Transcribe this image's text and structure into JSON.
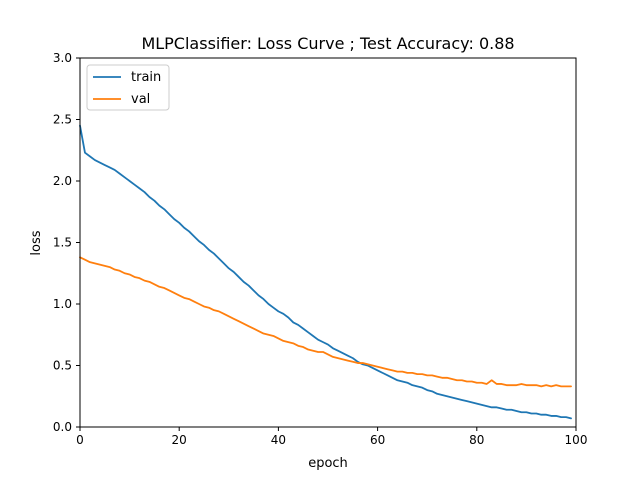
{
  "chart_data": {
    "type": "line",
    "title": "MLPClassifier: Loss Curve ; Test Accuracy: 0.88",
    "xlabel": "epoch",
    "ylabel": "loss",
    "xlim": [
      0,
      100
    ],
    "ylim": [
      0,
      3
    ],
    "xticks": [
      0,
      20,
      40,
      60,
      80,
      100
    ],
    "yticks": [
      0.0,
      0.5,
      1.0,
      1.5,
      2.0,
      2.5,
      3.0
    ],
    "xtick_labels": [
      "0",
      "20",
      "40",
      "60",
      "80",
      "100"
    ],
    "ytick_labels": [
      "0.0",
      "0.5",
      "1.0",
      "1.5",
      "2.0",
      "2.5",
      "3.0"
    ],
    "grid": false,
    "legend_position": "upper-left",
    "series": [
      {
        "name": "train",
        "color": "#1f77b4",
        "x": [
          0,
          1,
          2,
          3,
          4,
          5,
          6,
          7,
          8,
          9,
          10,
          11,
          12,
          13,
          14,
          15,
          16,
          17,
          18,
          19,
          20,
          21,
          22,
          23,
          24,
          25,
          26,
          27,
          28,
          29,
          30,
          31,
          32,
          33,
          34,
          35,
          36,
          37,
          38,
          39,
          40,
          41,
          42,
          43,
          44,
          45,
          46,
          47,
          48,
          49,
          50,
          51,
          52,
          53,
          54,
          55,
          56,
          57,
          58,
          59,
          60,
          61,
          62,
          63,
          64,
          65,
          66,
          67,
          68,
          69,
          70,
          71,
          72,
          73,
          74,
          75,
          76,
          77,
          78,
          79,
          80,
          81,
          82,
          83,
          84,
          85,
          86,
          87,
          88,
          89,
          90,
          91,
          92,
          93,
          94,
          95,
          96,
          97,
          98,
          99
        ],
        "values": [
          2.45,
          2.23,
          2.2,
          2.17,
          2.15,
          2.13,
          2.11,
          2.09,
          2.06,
          2.03,
          2.0,
          1.97,
          1.94,
          1.91,
          1.87,
          1.84,
          1.8,
          1.77,
          1.73,
          1.69,
          1.66,
          1.62,
          1.59,
          1.55,
          1.51,
          1.48,
          1.44,
          1.41,
          1.37,
          1.33,
          1.29,
          1.26,
          1.22,
          1.18,
          1.15,
          1.11,
          1.07,
          1.04,
          1.0,
          0.97,
          0.94,
          0.92,
          0.89,
          0.85,
          0.83,
          0.8,
          0.77,
          0.74,
          0.71,
          0.69,
          0.67,
          0.64,
          0.62,
          0.6,
          0.58,
          0.56,
          0.53,
          0.51,
          0.5,
          0.48,
          0.46,
          0.44,
          0.42,
          0.4,
          0.38,
          0.37,
          0.36,
          0.34,
          0.33,
          0.32,
          0.3,
          0.29,
          0.27,
          0.26,
          0.25,
          0.24,
          0.23,
          0.22,
          0.21,
          0.2,
          0.19,
          0.18,
          0.17,
          0.16,
          0.16,
          0.15,
          0.14,
          0.14,
          0.13,
          0.12,
          0.12,
          0.11,
          0.11,
          0.1,
          0.1,
          0.09,
          0.09,
          0.08,
          0.08,
          0.07
        ]
      },
      {
        "name": "val",
        "color": "#ff7f0e",
        "x": [
          0,
          1,
          2,
          3,
          4,
          5,
          6,
          7,
          8,
          9,
          10,
          11,
          12,
          13,
          14,
          15,
          16,
          17,
          18,
          19,
          20,
          21,
          22,
          23,
          24,
          25,
          26,
          27,
          28,
          29,
          30,
          31,
          32,
          33,
          34,
          35,
          36,
          37,
          38,
          39,
          40,
          41,
          42,
          43,
          44,
          45,
          46,
          47,
          48,
          49,
          50,
          51,
          52,
          53,
          54,
          55,
          56,
          57,
          58,
          59,
          60,
          61,
          62,
          63,
          64,
          65,
          66,
          67,
          68,
          69,
          70,
          71,
          72,
          73,
          74,
          75,
          76,
          77,
          78,
          79,
          80,
          81,
          82,
          83,
          84,
          85,
          86,
          87,
          88,
          89,
          90,
          91,
          92,
          93,
          94,
          95,
          96,
          97,
          98,
          99
        ],
        "values": [
          1.38,
          1.36,
          1.34,
          1.33,
          1.32,
          1.31,
          1.3,
          1.28,
          1.27,
          1.25,
          1.24,
          1.22,
          1.21,
          1.19,
          1.18,
          1.16,
          1.14,
          1.13,
          1.11,
          1.09,
          1.07,
          1.05,
          1.04,
          1.02,
          1.0,
          0.98,
          0.97,
          0.95,
          0.94,
          0.92,
          0.9,
          0.88,
          0.86,
          0.84,
          0.82,
          0.8,
          0.78,
          0.76,
          0.75,
          0.74,
          0.72,
          0.7,
          0.69,
          0.68,
          0.66,
          0.65,
          0.63,
          0.62,
          0.61,
          0.61,
          0.59,
          0.57,
          0.56,
          0.55,
          0.54,
          0.53,
          0.52,
          0.52,
          0.51,
          0.5,
          0.49,
          0.48,
          0.47,
          0.46,
          0.45,
          0.45,
          0.44,
          0.44,
          0.43,
          0.43,
          0.42,
          0.42,
          0.41,
          0.4,
          0.4,
          0.39,
          0.38,
          0.38,
          0.37,
          0.37,
          0.36,
          0.36,
          0.35,
          0.38,
          0.35,
          0.35,
          0.34,
          0.34,
          0.34,
          0.35,
          0.34,
          0.34,
          0.34,
          0.33,
          0.34,
          0.33,
          0.34,
          0.33,
          0.33,
          0.33
        ]
      }
    ]
  }
}
